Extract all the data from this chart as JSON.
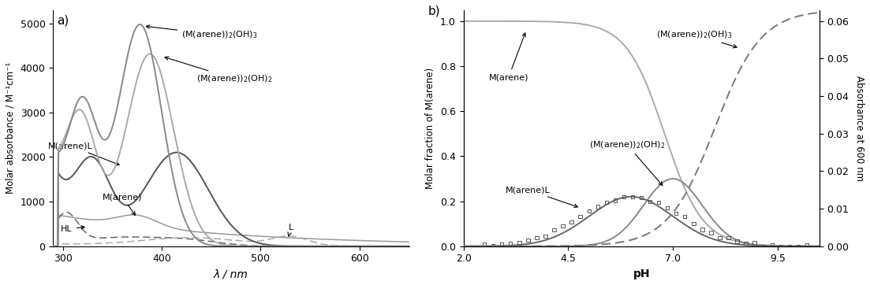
{
  "panel_a": {
    "xlabel": "λ / nm",
    "ylabel": "Molar absorbance / M⁻¹cm⁻¹",
    "xlim": [
      290,
      650
    ],
    "ylim": [
      0,
      5300
    ],
    "yticks": [
      0,
      1000,
      2000,
      3000,
      4000,
      5000
    ],
    "xticks": [
      300,
      400,
      500,
      600
    ],
    "color_OH3": "#888888",
    "color_OH2": "#aaaaaa",
    "color_ML": "#555555",
    "color_Marene": "#999999",
    "color_HL": "#666666",
    "color_L": "#aaaaaa"
  },
  "panel_b": {
    "xlabel": "pH",
    "ylabel_left": "Molar fraction of M(arene)",
    "ylabel_right": "Absorbance at 600 nm",
    "xlim": [
      2.0,
      10.5
    ],
    "ylim_left": [
      0.0,
      1.05
    ],
    "ylim_right": [
      0.0,
      0.063
    ],
    "xticks": [
      2.0,
      4.5,
      7.0,
      9.5
    ],
    "yticks_left": [
      0.0,
      0.2,
      0.4,
      0.6,
      0.8,
      1.0
    ],
    "yticks_right": [
      0.0,
      0.01,
      0.02,
      0.03,
      0.04,
      0.05,
      0.06
    ],
    "color_Marene": "#aaaaaa",
    "color_OH2": "#888888",
    "color_ML": "#666666",
    "color_OH3": "#777777"
  }
}
